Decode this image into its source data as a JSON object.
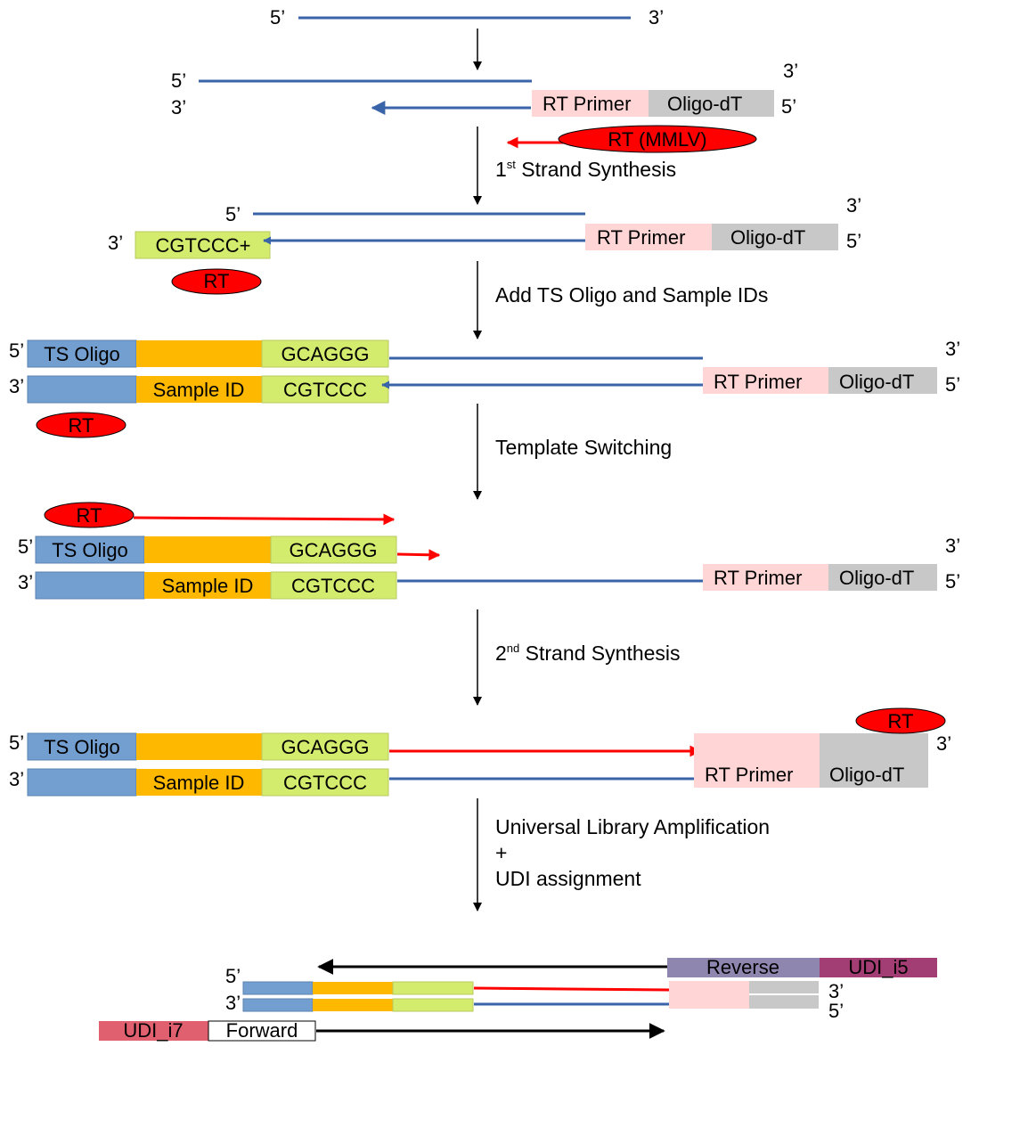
{
  "ends": {
    "five": "5’",
    "three": "3’"
  },
  "labels": {
    "rt_primer": "RT Primer",
    "oligo_dt": "Oligo-dT",
    "rt_mmlv": "RT (MMLV)",
    "rt": "RT",
    "cgtccc_plus": "CGTCCC+",
    "ts_oligo": "TS Oligo",
    "gcaggg": "GCAGGG",
    "sample_id": "Sample ID",
    "cgtccc": "CGTCCC",
    "reverse": "Reverse",
    "udi_i5": "UDI_i5",
    "udi_i7": "UDI_i7",
    "forward": "Forward"
  },
  "steps": {
    "first_strand": {
      "main": "1",
      "sup": "st",
      "rest": " Strand Synthesis"
    },
    "add_ts": "Add TS Oligo and Sample IDs",
    "template_switching": "Template Switching",
    "second_strand": {
      "main": "2",
      "sup": "nd",
      "rest": " Strand Synthesis"
    },
    "amp_line1": "Universal Library Amplification",
    "amp_line2": "+",
    "amp_line3": "UDI assignment"
  },
  "colors": {
    "strand_blue": "#3a64a8",
    "strand_red": "#ff0000",
    "rt_primer": "#ffd5d5",
    "oligo_dt": "#c8c8c8",
    "ts_oligo": "#729fcf",
    "sample_id": "#ffb800",
    "gcaggg": "#d4ec6e",
    "reverse": "#8e86ae",
    "udi_i5": "#a33e75",
    "udi_i7": "#e06070",
    "enzyme": "#ff0000"
  }
}
